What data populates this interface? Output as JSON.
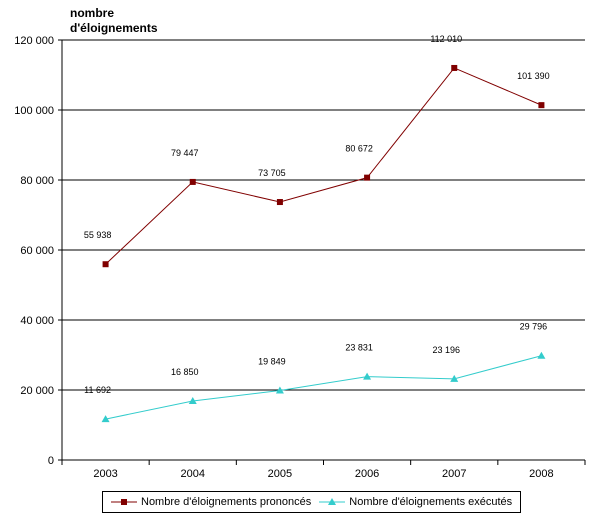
{
  "chart_data": {
    "type": "line",
    "ylabel": "nombre\nd'éloignements",
    "categories": [
      "2003",
      "2004",
      "2005",
      "2006",
      "2007",
      "2008"
    ],
    "ylim": [
      0,
      120000
    ],
    "yticks": [
      0,
      20000,
      40000,
      60000,
      80000,
      100000,
      120000
    ],
    "ytick_labels": [
      "0",
      "20 000",
      "40 000",
      "60 000",
      "80 000",
      "100 000",
      "120 000"
    ],
    "grid": true,
    "legend_position": "bottom",
    "series": [
      {
        "name": "Nombre d'éloignements prononcés",
        "color": "#800000",
        "marker": "square",
        "values": [
          55938,
          79447,
          73705,
          80672,
          112010,
          101390
        ],
        "labels": [
          "55 938",
          "79 447",
          "73 705",
          "80 672",
          "112 010",
          "101 390"
        ]
      },
      {
        "name": "Nombre d'éloignements exécutés",
        "color": "#33CCCC",
        "marker": "triangle",
        "values": [
          11692,
          16850,
          19849,
          23831,
          23196,
          29796
        ],
        "labels": [
          "11 692",
          "16 850",
          "19 849",
          "23 831",
          "23 196",
          "29 796"
        ]
      }
    ]
  }
}
